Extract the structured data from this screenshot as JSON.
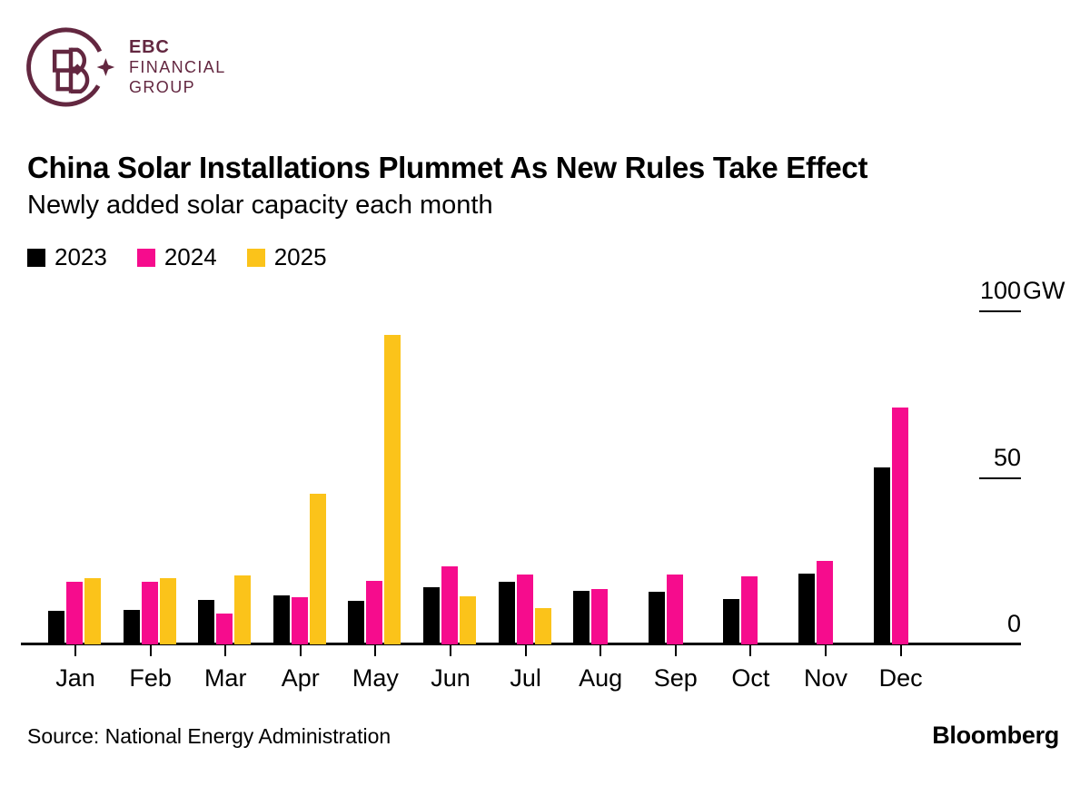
{
  "logo": {
    "line1": "EBC",
    "line2": "FINANCIAL",
    "line3": "GROUP",
    "color": "#632740"
  },
  "title": "China Solar Installations Plummet As New Rules Take Effect",
  "subtitle": "Newly added solar capacity each month",
  "legend": [
    {
      "label": "2023",
      "color": "#000000"
    },
    {
      "label": "2024",
      "color": "#f60c8d"
    },
    {
      "label": "2025",
      "color": "#fbc31a"
    }
  ],
  "source": "Source: National Energy Administration",
  "attribution": "Bloomberg",
  "chart_data": {
    "type": "bar",
    "title": "China Solar Installations Plummet As New Rules Take Effect",
    "subtitle": "Newly added solar capacity each month",
    "unit": "GW",
    "categories": [
      "Jan",
      "Feb",
      "Mar",
      "Apr",
      "May",
      "Jun",
      "Jul",
      "Aug",
      "Sep",
      "Oct",
      "Nov",
      "Dec"
    ],
    "series": [
      {
        "name": "2023",
        "color": "#000000",
        "values": [
          10,
          10.4,
          13.3,
          14.7,
          13.1,
          17.2,
          18.7,
          16,
          15.8,
          13.6,
          21.3,
          53
        ]
      },
      {
        "name": "2024",
        "color": "#f60c8d",
        "values": [
          18.7,
          18.7,
          9.3,
          14.2,
          19.2,
          23.3,
          21.1,
          16.5,
          20.9,
          20.4,
          25,
          71
        ]
      },
      {
        "name": "2025",
        "color": "#fbc31a",
        "values": [
          19.9,
          20,
          20.6,
          45.2,
          92.9,
          14.4,
          11,
          null,
          null,
          null,
          null,
          null
        ]
      }
    ],
    "y_axis": {
      "position": "right",
      "ylim": [
        0,
        100
      ],
      "ticks": [
        {
          "value": 100,
          "label": "100",
          "unit": "GW"
        },
        {
          "value": 50,
          "label": "50"
        },
        {
          "value": 0,
          "label": "0"
        }
      ]
    },
    "grid": false,
    "legend_position": "top-left"
  }
}
